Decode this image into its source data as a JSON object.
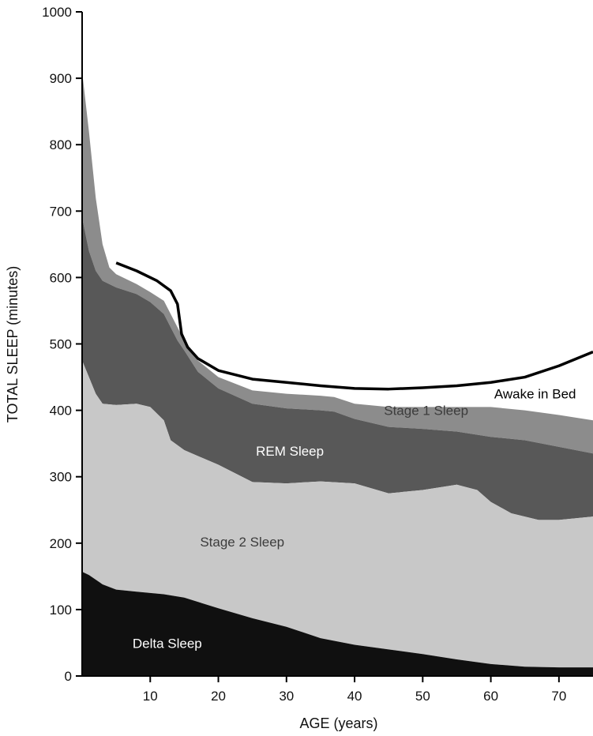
{
  "chart_data": {
    "type": "area",
    "xlabel": "AGE (years)",
    "ylabel": "TOTAL SLEEP (minutes)",
    "xlim": [
      0,
      75
    ],
    "ylim": [
      0,
      1000
    ],
    "x_ticks": [
      10,
      20,
      30,
      40,
      50,
      60,
      70
    ],
    "y_ticks": [
      0,
      100,
      200,
      300,
      400,
      500,
      600,
      700,
      800,
      900,
      1000
    ],
    "grid": false,
    "legend": "none",
    "boundaries": [
      {
        "name": "Delta Sleep",
        "color": "#101010",
        "points": [
          [
            0,
            157
          ],
          [
            1,
            152
          ],
          [
            3,
            138
          ],
          [
            5,
            130
          ],
          [
            8,
            127
          ],
          [
            12,
            123
          ],
          [
            15,
            118
          ],
          [
            20,
            102
          ],
          [
            25,
            87
          ],
          [
            30,
            74
          ],
          [
            35,
            57
          ],
          [
            40,
            47
          ],
          [
            45,
            40
          ],
          [
            50,
            33
          ],
          [
            55,
            25
          ],
          [
            60,
            18
          ],
          [
            65,
            14
          ],
          [
            70,
            13
          ],
          [
            75,
            13
          ]
        ]
      },
      {
        "name": "Stage 2 Sleep",
        "color": "#c8c8c8",
        "points": [
          [
            0,
            475
          ],
          [
            1,
            450
          ],
          [
            2,
            425
          ],
          [
            3,
            410
          ],
          [
            5,
            408
          ],
          [
            8,
            410
          ],
          [
            10,
            405
          ],
          [
            12,
            385
          ],
          [
            13,
            355
          ],
          [
            15,
            340
          ],
          [
            20,
            318
          ],
          [
            25,
            292
          ],
          [
            30,
            290
          ],
          [
            35,
            293
          ],
          [
            40,
            290
          ],
          [
            45,
            275
          ],
          [
            50,
            280
          ],
          [
            55,
            288
          ],
          [
            58,
            280
          ],
          [
            60,
            262
          ],
          [
            63,
            245
          ],
          [
            67,
            235
          ],
          [
            70,
            235
          ],
          [
            75,
            240
          ]
        ]
      },
      {
        "name": "REM Sleep",
        "color": "#585858",
        "points": [
          [
            0,
            690
          ],
          [
            1,
            640
          ],
          [
            2,
            610
          ],
          [
            3,
            595
          ],
          [
            5,
            585
          ],
          [
            8,
            575
          ],
          [
            10,
            563
          ],
          [
            12,
            545
          ],
          [
            13,
            525
          ],
          [
            14,
            505
          ],
          [
            15,
            490
          ],
          [
            17,
            458
          ],
          [
            20,
            433
          ],
          [
            25,
            410
          ],
          [
            30,
            403
          ],
          [
            35,
            400
          ],
          [
            37,
            398
          ],
          [
            40,
            387
          ],
          [
            45,
            375
          ],
          [
            50,
            372
          ],
          [
            55,
            368
          ],
          [
            60,
            360
          ],
          [
            65,
            355
          ],
          [
            70,
            345
          ],
          [
            75,
            335
          ]
        ]
      },
      {
        "name": "Stage 1 Sleep",
        "color": "#8c8c8c",
        "points": [
          [
            0,
            910
          ],
          [
            1,
            820
          ],
          [
            2,
            720
          ],
          [
            3,
            650
          ],
          [
            4,
            615
          ],
          [
            5,
            605
          ],
          [
            8,
            590
          ],
          [
            10,
            578
          ],
          [
            12,
            565
          ],
          [
            13,
            545
          ],
          [
            15,
            505
          ],
          [
            17,
            475
          ],
          [
            20,
            450
          ],
          [
            25,
            430
          ],
          [
            30,
            425
          ],
          [
            35,
            422
          ],
          [
            37,
            420
          ],
          [
            40,
            410
          ],
          [
            45,
            405
          ],
          [
            50,
            405
          ],
          [
            55,
            405
          ],
          [
            60,
            405
          ],
          [
            65,
            400
          ],
          [
            70,
            393
          ],
          [
            75,
            385
          ]
        ]
      }
    ],
    "awake_in_bed_line": {
      "name": "Awake in Bed",
      "color": "#000000",
      "points": [
        [
          5,
          622
        ],
        [
          8,
          610
        ],
        [
          11,
          595
        ],
        [
          13,
          580
        ],
        [
          14,
          560
        ],
        [
          14.6,
          515
        ],
        [
          15.5,
          495
        ],
        [
          17,
          478
        ],
        [
          20,
          460
        ],
        [
          25,
          447
        ],
        [
          30,
          442
        ],
        [
          35,
          437
        ],
        [
          40,
          433
        ],
        [
          45,
          432
        ],
        [
          50,
          434
        ],
        [
          55,
          437
        ],
        [
          60,
          442
        ],
        [
          65,
          450
        ],
        [
          70,
          467
        ],
        [
          75,
          488
        ]
      ]
    },
    "labels": [
      {
        "text": "Awake in Bed",
        "x": 66.5,
        "y": 418,
        "color": "#000000"
      },
      {
        "text": "Stage 1 Sleep",
        "x": 50.5,
        "y": 393,
        "color": "#3c3c3c"
      },
      {
        "text": "REM Sleep",
        "x": 30.5,
        "y": 332,
        "color": "#ffffff"
      },
      {
        "text": "Stage 2 Sleep",
        "x": 23.5,
        "y": 195,
        "color": "#3c3c3c"
      },
      {
        "text": "Delta Sleep",
        "x": 12.5,
        "y": 42,
        "color": "#ffffff"
      }
    ]
  }
}
